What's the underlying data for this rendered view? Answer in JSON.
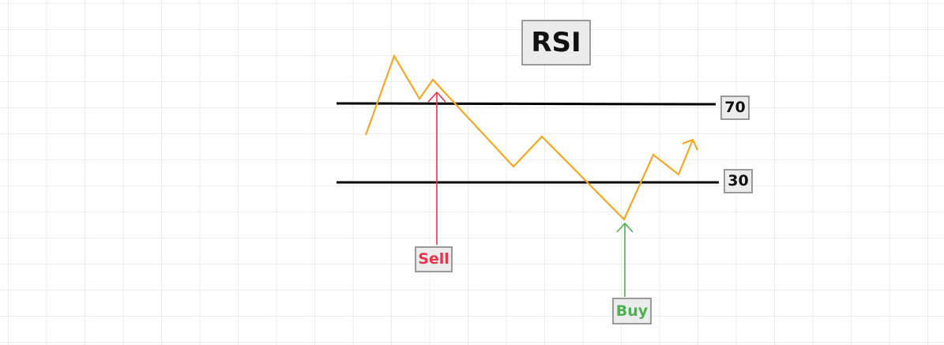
{
  "title": "RSI",
  "levels": {
    "overbought": "70",
    "oversold": "30"
  },
  "signals": {
    "sell_label": "Sell",
    "buy_label": "Buy"
  },
  "colors": {
    "rsi_line": "#f5a623",
    "level_line": "#000000",
    "sell": "#e8334a",
    "buy": "#4caf50"
  }
}
